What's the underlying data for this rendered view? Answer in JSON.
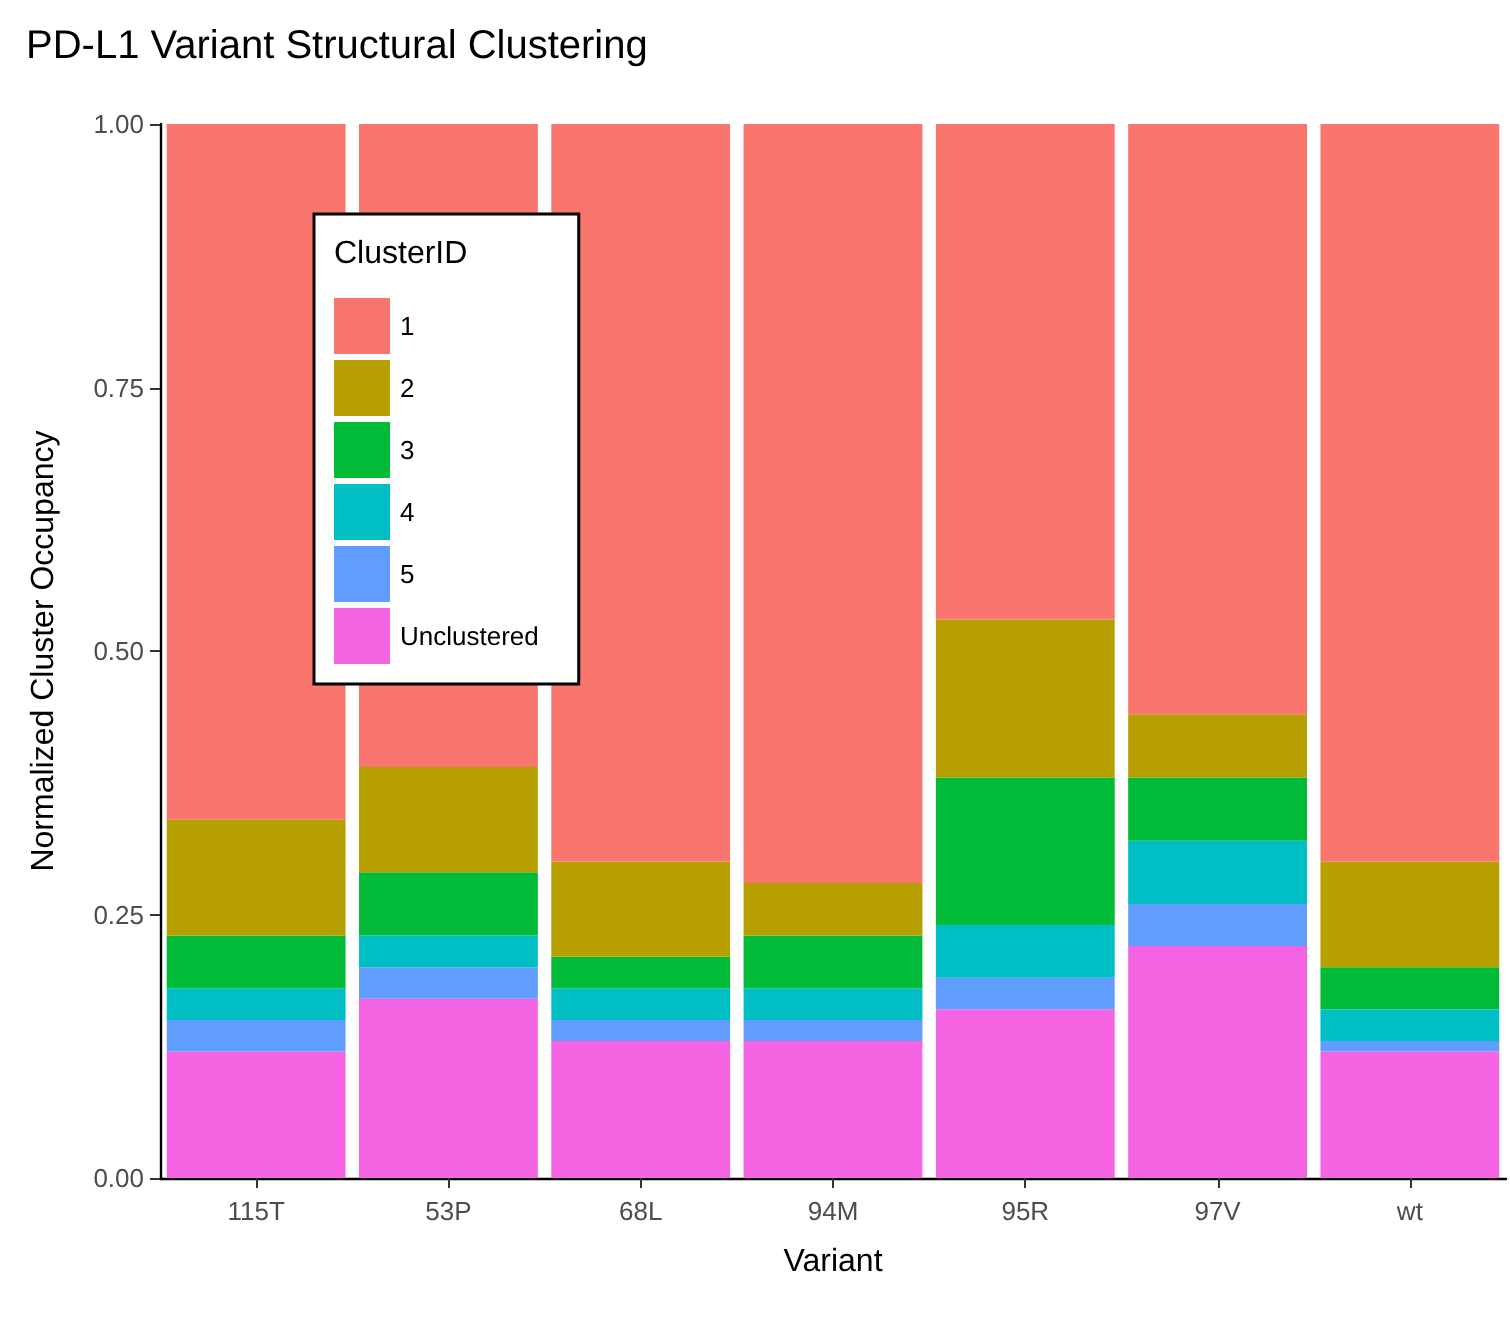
{
  "chart_data": {
    "type": "bar",
    "title": "PD-L1 Variant Structural Clustering",
    "xlabel": "Variant",
    "ylabel": "Normalized Cluster Occupancy",
    "legend_title": "ClusterID",
    "categories": [
      "115T",
      "53P",
      "68L",
      "94M",
      "95R",
      "97V",
      "wt"
    ],
    "stacked": true,
    "ylim": [
      0,
      1
    ],
    "yticks": [
      {
        "value": 0,
        "label": "0.00"
      },
      {
        "value": 0.25,
        "label": "0.25"
      },
      {
        "value": 0.5,
        "label": "0.50"
      },
      {
        "value": 0.75,
        "label": "0.75"
      },
      {
        "value": 1,
        "label": "1.00"
      }
    ],
    "grid": false,
    "legend": "top left",
    "series": [
      {
        "name": "Unclustered",
        "color": "#f564e3",
        "values": [
          0.12,
          0.17,
          0.13,
          0.13,
          0.16,
          0.22,
          0.12
        ]
      },
      {
        "name": "5",
        "color": "#619cff",
        "values": [
          0.03,
          0.03,
          0.02,
          0.02,
          0.03,
          0.04,
          0.01
        ]
      },
      {
        "name": "4",
        "color": "#00bfc4",
        "values": [
          0.03,
          0.03,
          0.03,
          0.03,
          0.05,
          0.06,
          0.03
        ]
      },
      {
        "name": "3",
        "color": "#00ba38",
        "values": [
          0.05,
          0.06,
          0.03,
          0.05,
          0.14,
          0.06,
          0.04
        ]
      },
      {
        "name": "2",
        "color": "#b79f00",
        "values": [
          0.11,
          0.1,
          0.09,
          0.05,
          0.15,
          0.06,
          0.1
        ]
      },
      {
        "name": "1",
        "color": "#f8766d",
        "values": [
          0.66,
          0.61,
          0.7,
          0.72,
          0.47,
          0.56,
          0.7
        ]
      }
    ]
  }
}
